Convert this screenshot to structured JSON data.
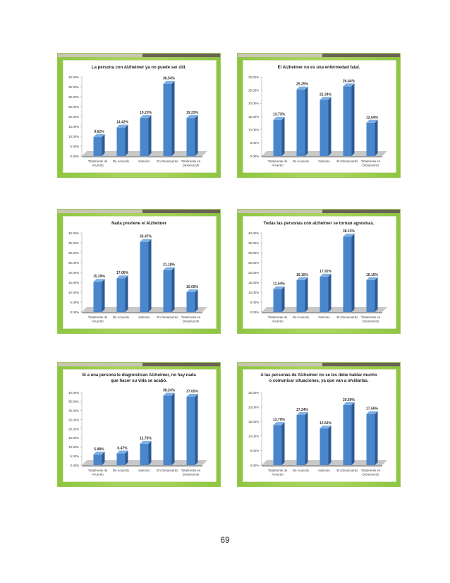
{
  "page_number": "69",
  "colors": {
    "bar_front": "#4a86cc",
    "bar_side": "#2d5a94",
    "bar_top": "#7fb0e3",
    "floor": "#c8c8c8",
    "panel_green": "#a8d45c",
    "panel_bar_light": "#c9c5b3",
    "panel_bar_dark": "#6b6255"
  },
  "chart_data": [
    {
      "type": "bar",
      "title": "La persona con Alzheimer ya no puede ser útil.",
      "categories": [
        "Totalmente de Acuerdo",
        "De Acuerdo",
        "Indeciso",
        "En Desacuerdo",
        "Totalmente en Desacuerdo"
      ],
      "values": [
        9.62,
        14.42,
        19.23,
        36.54,
        19.23
      ],
      "data_labels": [
        "9.62%",
        "14.42%",
        "19.23%",
        "36.54%",
        "19.23%"
      ],
      "y_ticks": [
        "0.00%",
        "5.00%",
        "10.00%",
        "15.00%",
        "20.00%",
        "25.00%",
        "30.00%",
        "35.00%",
        "40.00%"
      ],
      "ylim": [
        0,
        40
      ]
    },
    {
      "type": "bar",
      "title": "El Alzheimer no es una enfermedad fatal.",
      "categories": [
        "Totalmente de Acuerdo",
        "De Acuerdo",
        "Indeciso",
        "En Desacuerdo",
        "Totalmente en Desacuerdo"
      ],
      "values": [
        13.73,
        25.25,
        21.34,
        26.44,
        12.64
      ],
      "data_labels": [
        "13.73%",
        "25.25%",
        "21.34%",
        "26.44%",
        "12.64%"
      ],
      "y_ticks": [
        "0.00%",
        "5.00%",
        "10.00%",
        "15.00%",
        "20.00%",
        "25.00%",
        "30.00%"
      ],
      "ylim": [
        0,
        30
      ]
    },
    {
      "type": "bar",
      "title": "Nada previene el Alzheimer",
      "categories": [
        "Totalmente de Acuerdo",
        "De Acuerdo",
        "Indeciso",
        "En Desacuerdo",
        "Totalmente en Desacuerdo"
      ],
      "values": [
        15.29,
        17.06,
        35.47,
        21.18,
        10.0
      ],
      "data_labels": [
        "15.29%",
        "17.06%",
        "35.47%",
        "21.18%",
        "10.00%"
      ],
      "y_ticks": [
        "0.00%",
        "5.00%",
        "10.00%",
        "15.00%",
        "20.00%",
        "25.00%",
        "30.00%",
        "35.00%",
        "40.00%"
      ],
      "ylim": [
        0,
        40
      ]
    },
    {
      "type": "bar",
      "title": "Todas las personas con alzheimer se tornan agresivas.",
      "categories": [
        "Totalmente de Acuerdo",
        "De Acuerdo",
        "Indeciso",
        "En Desacuerdo",
        "Totalmente en Desacuerdo"
      ],
      "values": [
        11.54,
        16.15,
        17.92,
        38.15,
        16.15
      ],
      "data_labels": [
        "11.54%",
        "16.15%",
        "17.92%",
        "38.15%",
        "16.15%"
      ],
      "y_ticks": [
        "0.00%",
        "5.00%",
        "10.00%",
        "15.00%",
        "20.00%",
        "25.00%",
        "30.00%",
        "35.00%",
        "40.00%"
      ],
      "ylim": [
        0,
        40
      ]
    },
    {
      "type": "bar",
      "title": "Si a una persona le diagnostican Alzheimer, no hay nada que hacer su vida se acabó.",
      "categories": [
        "Totalmente de Acuerdo",
        "De Acuerdo",
        "Indeciso",
        "En Desacuerdo",
        "Totalmente en Desacuerdo"
      ],
      "values": [
        5.88,
        6.47,
        11.76,
        38.24,
        37.65
      ],
      "data_labels": [
        "5.88%",
        "6.47%",
        "11.76%",
        "38.24%",
        "37.65%"
      ],
      "y_ticks": [
        "0.00%",
        "5.00%",
        "10.00%",
        "15.00%",
        "20.00%",
        "25.00%",
        "30.00%",
        "35.00%",
        "40.00%"
      ],
      "ylim": [
        0,
        40
      ]
    },
    {
      "type": "bar",
      "title": "A las personas de Alzheimer no se les debe hablar mucho o comunicar situaciones, ya que van a olvidarlas.",
      "categories": [
        "Totalmente de Acuerdo",
        "De Acuerdo",
        "Indeciso",
        "En Desacuerdo",
        "Totalmente en Desacuerdo"
      ],
      "values": [
        13.79,
        17.24,
        12.64,
        20.69,
        17.59
      ],
      "data_labels": [
        "13.79%",
        "17.24%",
        "12.64%",
        "20.69%",
        "17.59%"
      ],
      "y_ticks": [
        "0.00%",
        "5.00%",
        "10.00%",
        "15.00%",
        "20.00%",
        "25.00%"
      ],
      "ylim": [
        0,
        25
      ]
    }
  ]
}
